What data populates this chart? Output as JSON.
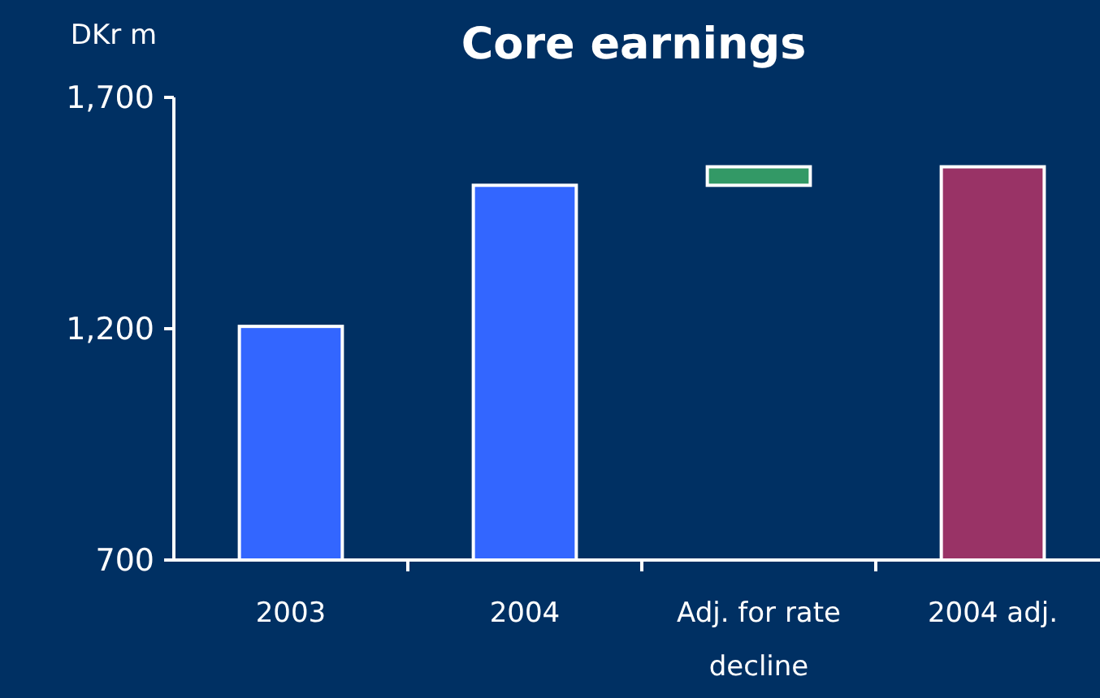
{
  "chart_data": {
    "type": "bar",
    "title": "Core earnings",
    "ylabel": "DKr m",
    "categories": [
      "2003",
      "2004",
      "Adj. for rate decline",
      "2004 adj."
    ],
    "values": [
      1205,
      1510,
      40,
      1550
    ],
    "base": [
      null,
      null,
      1510,
      null
    ],
    "colors": [
      "#3366ff",
      "#3366ff",
      "#339966",
      "#993366"
    ],
    "ylim": [
      700,
      1700
    ],
    "yticks": [
      {
        "value": 700,
        "label": "700"
      },
      {
        "value": 1200,
        "label": "1,200"
      },
      {
        "value": 1700,
        "label": "1,700"
      }
    ],
    "grid": false
  }
}
